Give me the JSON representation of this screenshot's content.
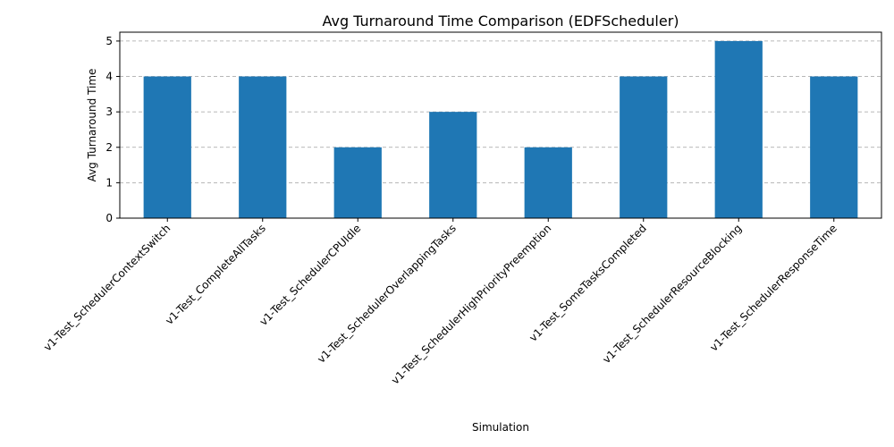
{
  "chart_data": {
    "type": "bar",
    "title": "Avg Turnaround Time Comparison (EDFScheduler)",
    "xlabel": "Simulation",
    "ylabel": "Avg Turnaround Time",
    "categories": [
      "v1-Test_SchedulerContextSwitch",
      "v1-Test_CompleteAllTasks",
      "v1-Test_SchedulerCPUIdle",
      "v1-Test_SchedulerOverlappingTasks",
      "v1-Test_SchedulerHighPriorityPreemption",
      "v1-Test_SomeTasksCompleted",
      "v1-Test_SchedulerResourceBlocking",
      "v1-Test_SchedulerResponseTime"
    ],
    "values": [
      4,
      4,
      2,
      3,
      2,
      4,
      5,
      4
    ],
    "ylim": [
      0,
      5.25
    ],
    "yticks": [
      0,
      1,
      2,
      3,
      4,
      5
    ],
    "grid": "y",
    "bar_color": "#1f77b4"
  }
}
